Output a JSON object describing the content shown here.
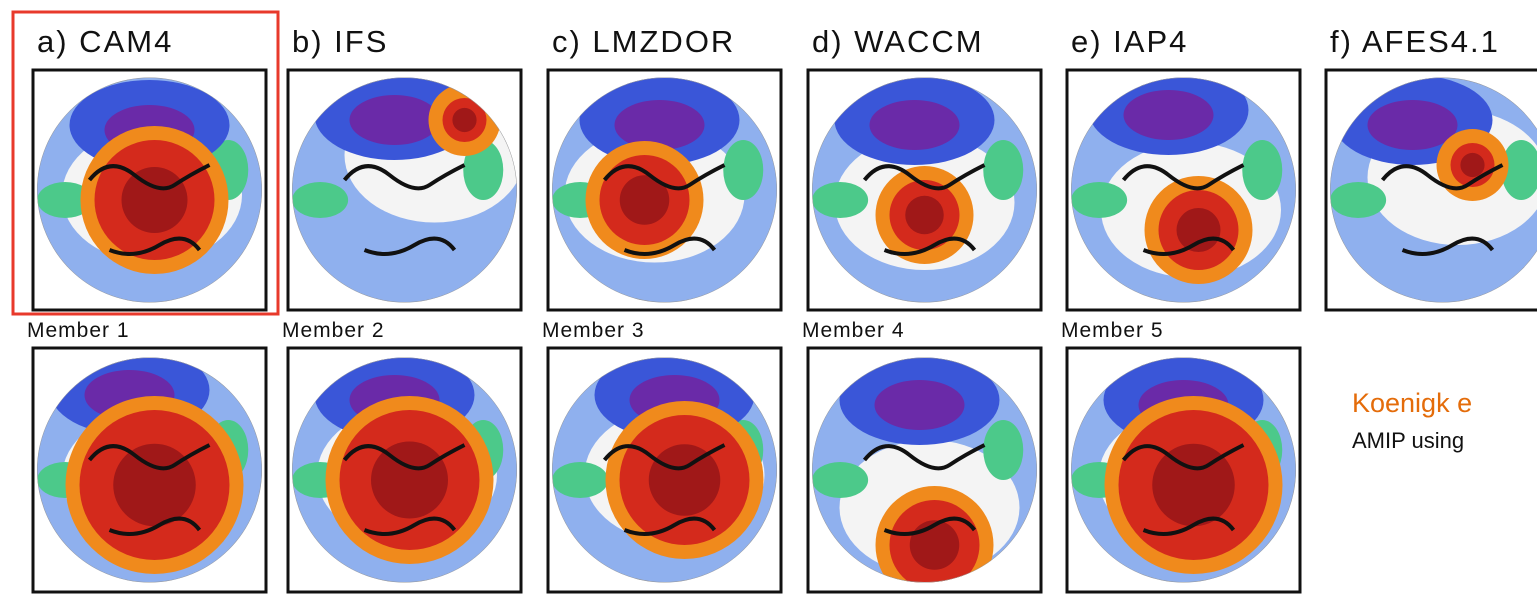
{
  "panels": {
    "titles": [
      "a) CAM4",
      "b) IFS",
      "c) LMZDOR",
      "d) WACCM",
      "e) IAP4",
      "f) AFES4.1"
    ],
    "members": [
      "Member 1",
      "Member 2",
      "Member 3",
      "Member 4",
      "Member 5"
    ]
  },
  "note": {
    "author": "Koenigk e",
    "text": "AMIP using"
  }
}
